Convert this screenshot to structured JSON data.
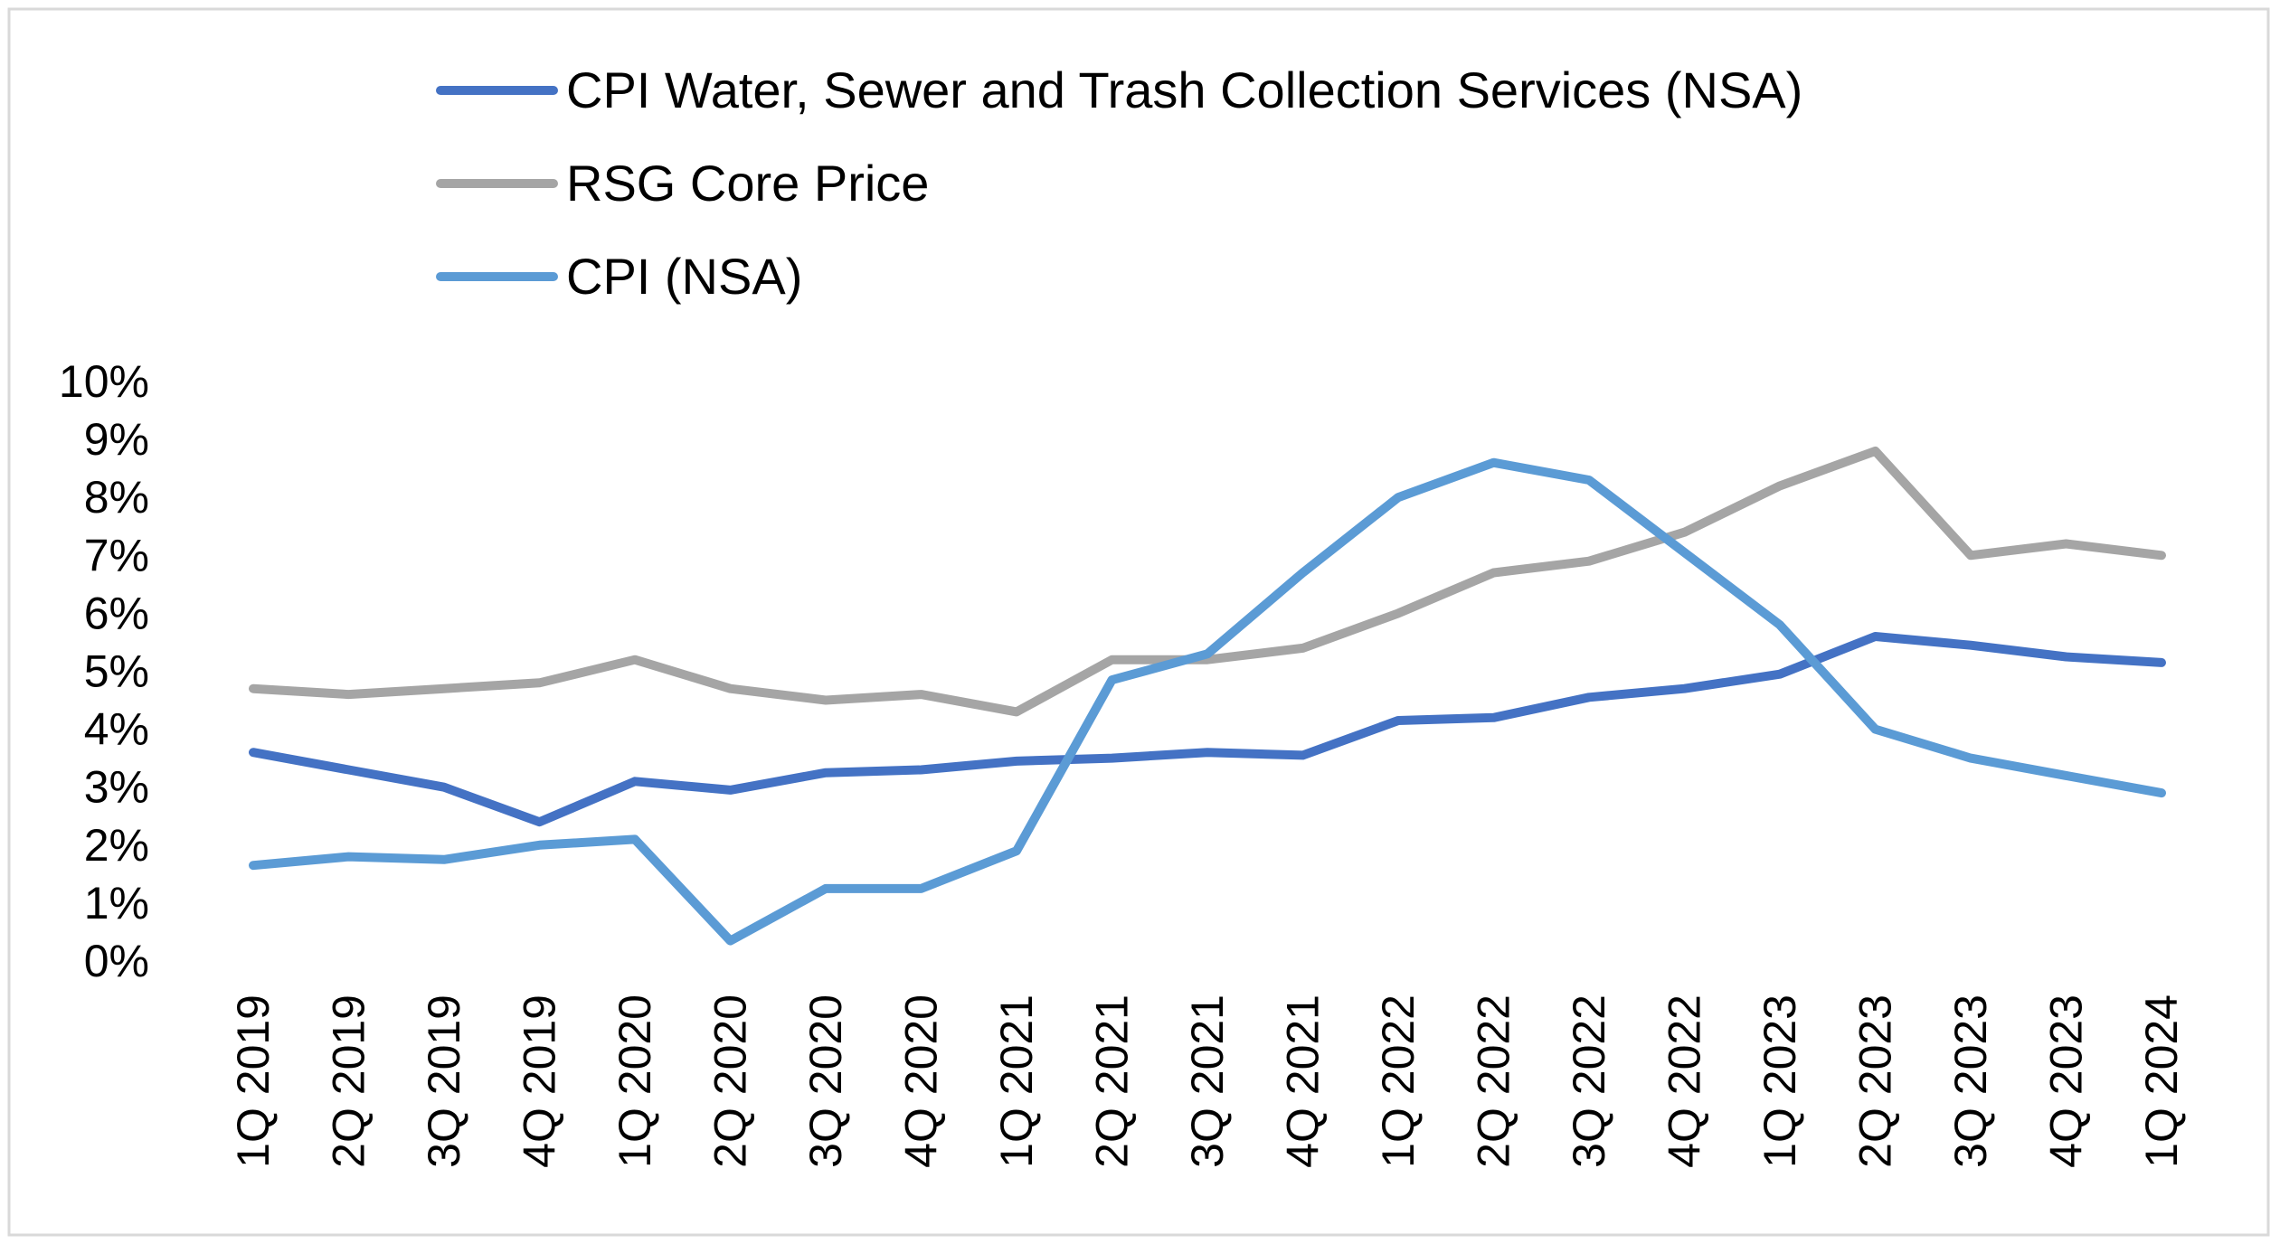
{
  "chart_data": {
    "type": "line",
    "title": "",
    "xlabel": "",
    "ylabel": "",
    "ylim": [
      0,
      10
    ],
    "y_ticks": [
      "0%",
      "1%",
      "2%",
      "3%",
      "4%",
      "5%",
      "6%",
      "7%",
      "8%",
      "9%",
      "10%"
    ],
    "y_tick_values": [
      0,
      1,
      2,
      3,
      4,
      5,
      6,
      7,
      8,
      9,
      10
    ],
    "grid": false,
    "legend_position": "top-center",
    "categories": [
      "1Q 2019",
      "2Q 2019",
      "3Q 2019",
      "4Q 2019",
      "1Q 2020",
      "2Q 2020",
      "3Q 2020",
      "4Q 2020",
      "1Q 2021",
      "2Q 2021",
      "3Q 2021",
      "4Q 2021",
      "1Q 2022",
      "2Q 2022",
      "3Q 2022",
      "4Q 2022",
      "1Q 2023",
      "2Q 2023",
      "3Q 2023",
      "4Q 2023",
      "1Q 2024"
    ],
    "series": [
      {
        "name": "CPI Water, Sewer and Trash Collection Services (NSA)",
        "color": "#4472C4",
        "values": [
          3.6,
          3.3,
          3.0,
          2.4,
          3.1,
          2.95,
          3.25,
          3.3,
          3.45,
          3.5,
          3.6,
          3.55,
          4.15,
          4.2,
          4.55,
          4.7,
          4.95,
          5.6,
          5.45,
          5.25,
          5.15
        ]
      },
      {
        "name": "RSG Core Price",
        "color": "#A5A5A5",
        "values": [
          4.7,
          4.6,
          4.7,
          4.8,
          5.2,
          4.7,
          4.5,
          4.6,
          4.3,
          5.2,
          5.2,
          5.4,
          6.0,
          6.7,
          6.9,
          7.4,
          8.2,
          8.8,
          7.0,
          7.2,
          7.0
        ]
      },
      {
        "name": "CPI (NSA)",
        "color": "#5B9BD5",
        "values": [
          1.65,
          1.8,
          1.75,
          2.0,
          2.1,
          0.35,
          1.25,
          1.25,
          1.9,
          4.85,
          5.3,
          6.7,
          8.0,
          8.6,
          8.3,
          7.05,
          5.8,
          4.0,
          3.5,
          3.2,
          2.9
        ]
      }
    ]
  }
}
